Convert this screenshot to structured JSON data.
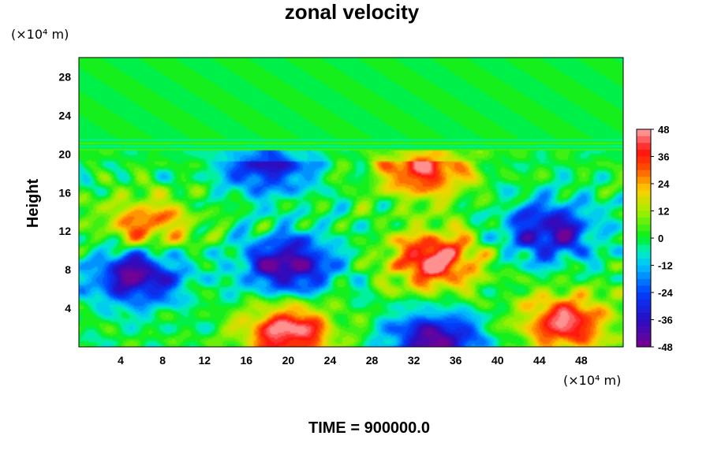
{
  "chart_data": {
    "type": "heatmap",
    "title": "zonal velocity",
    "ylabel": "Height",
    "xlabel": "",
    "x_unit_label": "(×10⁴ m)",
    "y_unit_label": "(×10⁴ m)",
    "footer": "TIME = 900000.0",
    "xlim": [
      0,
      52
    ],
    "ylim": [
      0,
      30
    ],
    "x_ticks": [
      4,
      8,
      12,
      16,
      20,
      24,
      28,
      32,
      36,
      40,
      44,
      48
    ],
    "y_ticks": [
      4,
      8,
      12,
      16,
      20,
      24,
      28
    ],
    "colorbar": {
      "min": -48,
      "max": 48,
      "ticks": [
        -48,
        -36,
        -24,
        -12,
        0,
        12,
        24,
        36,
        48
      ]
    },
    "features": [
      {
        "x": 20,
        "y": 1.5,
        "value": 48
      },
      {
        "x": 34,
        "y": 9,
        "value": 48
      },
      {
        "x": 33,
        "y": 18.5,
        "value": 42
      },
      {
        "x": 46.5,
        "y": 2.5,
        "value": 44
      },
      {
        "x": 6.5,
        "y": 12.5,
        "value": 32
      },
      {
        "x": 20,
        "y": 8.5,
        "value": -46
      },
      {
        "x": 5.5,
        "y": 7.5,
        "value": -46
      },
      {
        "x": 45,
        "y": 12,
        "value": -40
      },
      {
        "x": 34,
        "y": 0.5,
        "value": -46
      },
      {
        "x": 18,
        "y": 19,
        "value": -36
      }
    ]
  }
}
